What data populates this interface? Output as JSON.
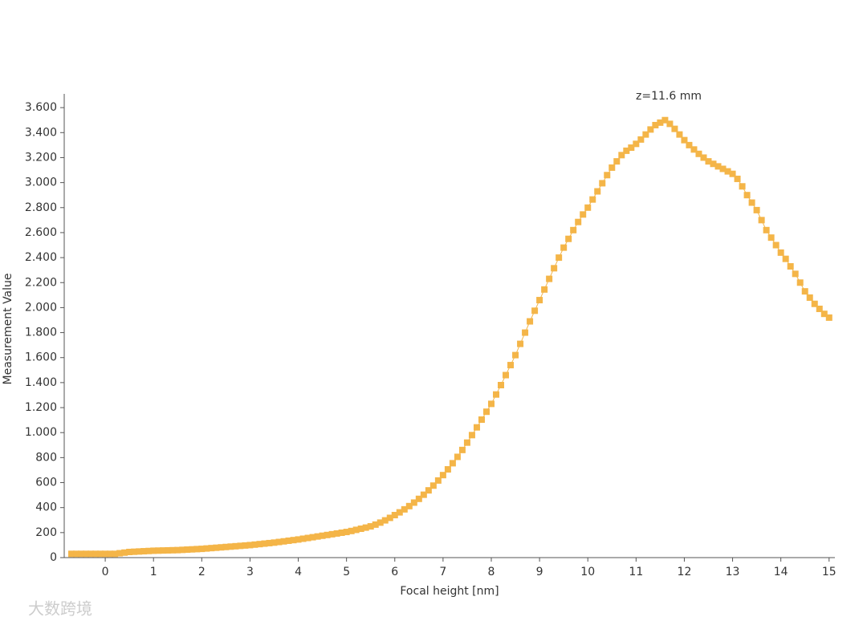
{
  "chart_data": {
    "type": "line",
    "annotation": "z=11.6 mm",
    "x_label": "Focal height [nm]",
    "y_label": "Measurement Value",
    "watermark": "大数跨境",
    "xlim": [
      -0.85,
      15.12
    ],
    "xticks": [
      0,
      1,
      2,
      3,
      4,
      5,
      6,
      7,
      8,
      9,
      10,
      11,
      12,
      13,
      14,
      15
    ],
    "ylim": [
      0,
      3710
    ],
    "yticks": [
      0,
      200,
      400,
      600,
      800,
      {
        "value": 1000,
        "label": "1.000"
      },
      {
        "value": 1200,
        "label": "1.200"
      },
      {
        "value": 1400,
        "label": "1.400"
      },
      {
        "value": 1600,
        "label": "1.600"
      },
      {
        "value": 1800,
        "label": "1.800"
      },
      {
        "value": 2000,
        "label": "2.000"
      },
      {
        "value": 2200,
        "label": "2.200"
      },
      {
        "value": 2400,
        "label": "2.400"
      },
      {
        "value": 2600,
        "label": "2.600"
      },
      {
        "value": 2800,
        "label": "2.800"
      },
      {
        "value": 3000,
        "label": "3.000"
      },
      {
        "value": 3200,
        "label": "3.200"
      },
      {
        "value": 3400,
        "label": "3.400"
      },
      {
        "value": 3600,
        "label": "3.600"
      }
    ],
    "x": [
      -0.7,
      -0.6,
      -0.5,
      -0.4,
      -0.3,
      -0.2,
      -0.1,
      0,
      0.1,
      0.2,
      0.3,
      0.4,
      0.5,
      0.6,
      0.7,
      0.8,
      0.9,
      1.0,
      1.1,
      1.2,
      1.3,
      1.4,
      1.5,
      1.6,
      1.7,
      1.8,
      1.9,
      2.0,
      2.1,
      2.2,
      2.3,
      2.4,
      2.5,
      2.6,
      2.7,
      2.8,
      2.9,
      3.0,
      3.1,
      3.2,
      3.3,
      3.4,
      3.5,
      3.6,
      3.7,
      3.8,
      3.9,
      4.0,
      4.1,
      4.2,
      4.3,
      4.4,
      4.5,
      4.6,
      4.7,
      4.8,
      4.9,
      5.0,
      5.1,
      5.2,
      5.3,
      5.4,
      5.5,
      5.6,
      5.7,
      5.8,
      5.9,
      6.0,
      6.1,
      6.2,
      6.3,
      6.4,
      6.5,
      6.6,
      6.7,
      6.8,
      6.9,
      7.0,
      7.1,
      7.2,
      7.3,
      7.4,
      7.5,
      7.6,
      7.7,
      7.8,
      7.9,
      8.0,
      8.1,
      8.2,
      8.3,
      8.4,
      8.5,
      8.6,
      8.7,
      8.8,
      8.9,
      9.0,
      9.1,
      9.2,
      9.3,
      9.4,
      9.5,
      9.6,
      9.7,
      9.8,
      9.9,
      10.0,
      10.1,
      10.2,
      10.3,
      10.4,
      10.5,
      10.6,
      10.7,
      10.8,
      10.9,
      11.0,
      11.1,
      11.2,
      11.3,
      11.4,
      11.5,
      11.6,
      11.7,
      11.8,
      11.9,
      12.0,
      12.1,
      12.2,
      12.3,
      12.4,
      12.5,
      12.6,
      12.7,
      12.8,
      12.9,
      13.0,
      13.1,
      13.2,
      13.3,
      13.4,
      13.5,
      13.6,
      13.7,
      13.8,
      13.9,
      14.0,
      14.1,
      14.2,
      14.3,
      14.4,
      14.5,
      14.6,
      14.7,
      14.8,
      14.9,
      15.0
    ],
    "series": [
      {
        "color": "#f4b548",
        "values": [
          30,
          30,
          30,
          30,
          30,
          30,
          30,
          30,
          30,
          30,
          35,
          40,
          45,
          47,
          49,
          51,
          53,
          55,
          56,
          57,
          58,
          59,
          60,
          62,
          64,
          66,
          68,
          70,
          73,
          76,
          79,
          82,
          85,
          88,
          91,
          94,
          97,
          100,
          104,
          108,
          112,
          116,
          120,
          125,
          130,
          135,
          140,
          145,
          151,
          157,
          163,
          169,
          175,
          181,
          187,
          193,
          199,
          205,
          213,
          222,
          231,
          240,
          250,
          264,
          280,
          298,
          318,
          340,
          362,
          386,
          412,
          440,
          470,
          503,
          538,
          576,
          617,
          660,
          706,
          755,
          806,
          861,
          920,
          980,
          1042,
          1104,
          1167,
          1230,
          1305,
          1380,
          1460,
          1540,
          1620,
          1710,
          1800,
          1890,
          1975,
          2060,
          2145,
          2230,
          2315,
          2400,
          2480,
          2550,
          2620,
          2685,
          2745,
          2800,
          2865,
          2930,
          2995,
          3060,
          3120,
          3170,
          3220,
          3255,
          3280,
          3310,
          3345,
          3385,
          3425,
          3460,
          3480,
          3500,
          3470,
          3430,
          3385,
          3340,
          3300,
          3265,
          3230,
          3200,
          3170,
          3150,
          3130,
          3110,
          3090,
          3070,
          3030,
          2970,
          2900,
          2840,
          2780,
          2700,
          2620,
          2560,
          2500,
          2440,
          2390,
          2330,
          2270,
          2200,
          2130,
          2080,
          2030,
          1990,
          1950,
          1920
        ]
      }
    ]
  }
}
